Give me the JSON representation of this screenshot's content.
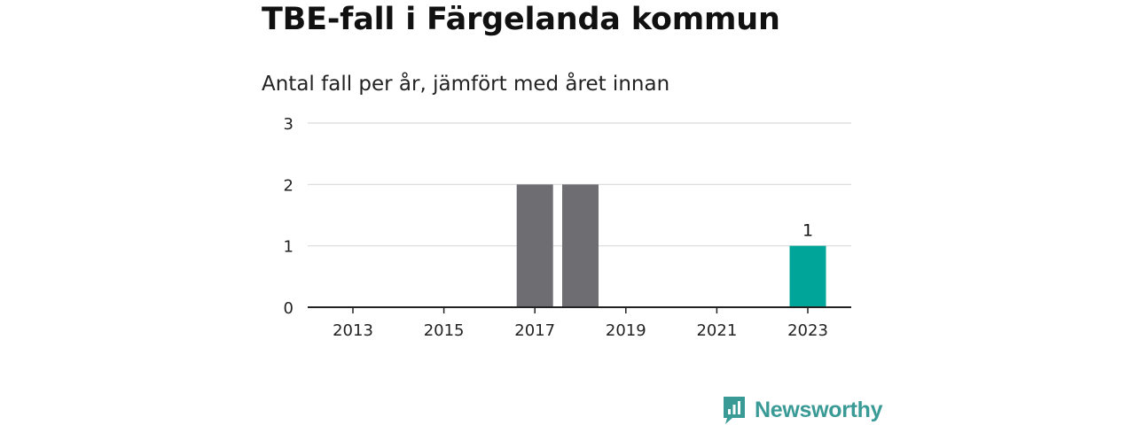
{
  "chart_data": {
    "type": "bar",
    "title": "TBE-fall i Färgelanda kommun",
    "subtitle": "Antal fall per år, jämfört med året innan",
    "xlabel": "",
    "ylabel": "",
    "categories": [
      "2013",
      "2014",
      "2015",
      "2016",
      "2017",
      "2018",
      "2019",
      "2020",
      "2021",
      "2022",
      "2023"
    ],
    "values": [
      0,
      0,
      0,
      0,
      2,
      2,
      0,
      0,
      0,
      0,
      1
    ],
    "x_tick_labels": [
      "2013",
      "2015",
      "2017",
      "2019",
      "2021",
      "2023"
    ],
    "y_ticks": [
      0,
      1,
      2,
      3
    ],
    "ylim": [
      0,
      3
    ],
    "grid": true,
    "data_labels": [
      {
        "category": "2023",
        "text": "1"
      }
    ],
    "colors": {
      "default_bar": "#6e6d72",
      "highlight_bar": "#00a59a",
      "gridline": "#d9d9d9",
      "axis": "#222222"
    },
    "highlight_category": "2023"
  },
  "brand": {
    "name": "Newsworthy",
    "logo_icon": "bar-chart-speech-bubble-icon",
    "color": "#3a9b96"
  }
}
